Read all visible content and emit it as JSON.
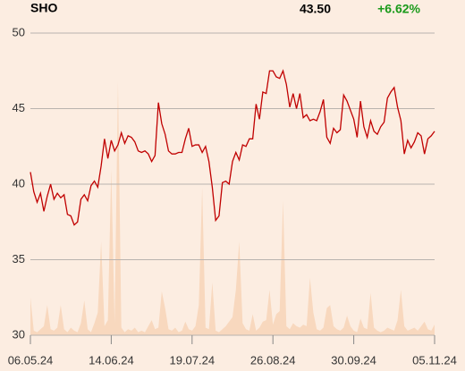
{
  "chart_data": {
    "type": "line",
    "title": "SHO",
    "price": "43.50",
    "change": "+6.62%",
    "change_color": "#1a9a1a",
    "categories": [
      "06.05.24",
      null,
      null,
      null,
      null,
      null,
      null,
      null,
      null,
      null,
      null,
      null,
      null,
      null,
      null,
      null,
      null,
      null,
      null,
      null,
      null,
      null,
      null,
      null,
      "14.06.24",
      null,
      null,
      null,
      null,
      null,
      null,
      null,
      null,
      null,
      null,
      null,
      null,
      null,
      null,
      null,
      null,
      null,
      null,
      null,
      null,
      null,
      null,
      null,
      "19.07.24",
      null,
      null,
      null,
      null,
      null,
      null,
      null,
      null,
      null,
      null,
      null,
      null,
      null,
      null,
      null,
      null,
      null,
      null,
      null,
      null,
      null,
      null,
      null,
      "26.08.24",
      null,
      null,
      null,
      null,
      null,
      null,
      null,
      null,
      null,
      null,
      null,
      null,
      null,
      null,
      null,
      null,
      null,
      null,
      null,
      null,
      null,
      null,
      null,
      "30.09.24",
      null,
      null,
      null,
      null,
      null,
      null,
      null,
      null,
      null,
      null,
      null,
      null,
      null,
      null,
      null,
      null,
      null,
      null,
      null,
      null,
      null,
      null,
      null,
      "05.11.24"
    ],
    "series": [
      {
        "color": "#c00000",
        "values": [
          40.8,
          39.5,
          38.8,
          39.4,
          38.2,
          39.2,
          40,
          39.0,
          39.4,
          39.1,
          39.3,
          38,
          37.9,
          37.3,
          37.5,
          39,
          39.3,
          38.9,
          39.9,
          40.2,
          39.8,
          41.2,
          43,
          41.7,
          42.9,
          42.2,
          42.6,
          43.4,
          42.7,
          43.2,
          43.1,
          42.8,
          42.2,
          42.1,
          42.2,
          42,
          41.5,
          41.9,
          45.4,
          44,
          43.3,
          42.2,
          42,
          42,
          42.1,
          42.1,
          43,
          43.7,
          42.5,
          42.6,
          42.6,
          42.1,
          42.5,
          41.5,
          39.8,
          37.6,
          37.9,
          40.1,
          40.2,
          40,
          41.5,
          42.1,
          41.6,
          42.6,
          42.5,
          43,
          43,
          45.3,
          44.3,
          46.1,
          46,
          47.5,
          47.5,
          47.1,
          47,
          47.5,
          46.6,
          45.1,
          46,
          45,
          46,
          44.4,
          44.6,
          44.2,
          44.3,
          44.2,
          44.8,
          45.6,
          43.1,
          42.7,
          43.7,
          43.4,
          43.6,
          45.9,
          45.5,
          44.9,
          44.3,
          43.1,
          45.5,
          43.8,
          43.1,
          44.2,
          43.5,
          43.3,
          43.8,
          44.1,
          45.7,
          46.1,
          46.4,
          45.1,
          44.2,
          42,
          42.9,
          42.4,
          42.8,
          43.4,
          43.2,
          42,
          43,
          43.2,
          43.5
        ]
      },
      {
        "color": "#f8d8be",
        "fill": true,
        "values": [
          32.5,
          30.3,
          30.2,
          30.4,
          30.6,
          32,
          30.4,
          30.3,
          30.5,
          32,
          30.4,
          30.2,
          30.5,
          30.3,
          30.2,
          30.8,
          32.3,
          30.4,
          30.2,
          30.8,
          31.5,
          36.2,
          30.6,
          31,
          41,
          30.8,
          46.8,
          30.5,
          30.2,
          30.4,
          30.3,
          30.5,
          30.2,
          30.3,
          30.2,
          30.6,
          31,
          30.4,
          30.5,
          32.9,
          31.8,
          30.4,
          30.3,
          30.5,
          30.2,
          30.3,
          30.9,
          30.4,
          30.3,
          30.6,
          32,
          39.8,
          30.5,
          30.4,
          33.5,
          30.3,
          30.2,
          30.4,
          30.6,
          30.9,
          31.2,
          33,
          36.2,
          30.8,
          30.4,
          30.3,
          31.4,
          30.3,
          30.5,
          30.9,
          31,
          33,
          30.7,
          31.4,
          31.6,
          38.9,
          30.6,
          30.4,
          30.8,
          30.6,
          30.5,
          30.7,
          30.6,
          33.8,
          31.5,
          30.4,
          30.3,
          30.5,
          31.8,
          32,
          30.6,
          30.4,
          30.3,
          30.5,
          31.3,
          30.6,
          30.3,
          30.2,
          31.1,
          30.5,
          30.4,
          32.8,
          30.5,
          30.3,
          30.2,
          30.3,
          30.5,
          30.4,
          30.3,
          31,
          33,
          30.6,
          30.3,
          30.4,
          30.5,
          30.3,
          30.6,
          30.9,
          30.4,
          30.3,
          30.7
        ]
      }
    ],
    "ylim": [
      30,
      50
    ],
    "yticks": [
      30,
      35,
      40,
      45,
      50
    ],
    "grid": true
  }
}
